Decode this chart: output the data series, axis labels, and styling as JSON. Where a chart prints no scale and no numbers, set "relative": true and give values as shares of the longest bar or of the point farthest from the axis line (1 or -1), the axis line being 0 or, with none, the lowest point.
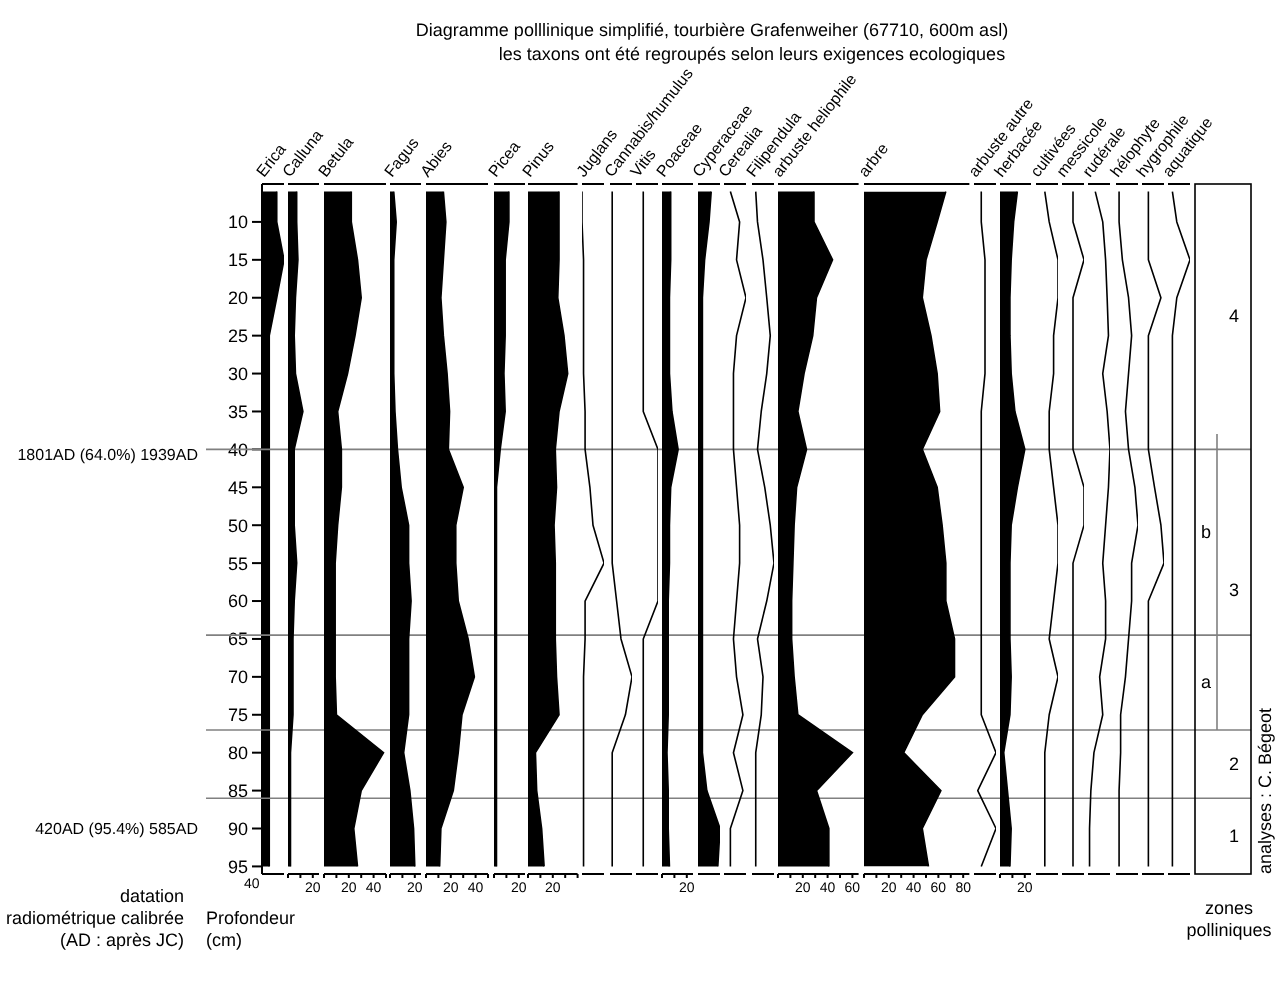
{
  "chart_data": [
    {
      "type": "other",
      "title": "Diagramme polllinique simplifié, tourbière Grafenweiher (67710, 600m asl)",
      "subtitle": "les taxons ont été regroupés selon leurs exigences ecologiques",
      "annotations": [
        "datation\nradiométrique calibrée\n(AD : après JC)",
        "40"
      ]
    },
    {
      "type": "area",
      "orientation": "horizontal",
      "relative": true,
      "title": "Erica",
      "color": "#000000",
      "ylabel": "Profondeur\n(cm)",
      "ylim": [
        96,
        5
      ],
      "yticks": [
        10,
        15,
        20,
        25,
        30,
        35,
        40,
        45,
        50,
        55,
        60,
        65,
        70,
        75,
        80,
        85,
        90,
        95
      ],
      "tick_labels": "y",
      "annotations": [
        "1801AD (64.0%) 1939AD",
        "420AD (95.4%) 585AD"
      ],
      "ref_lines": [
        {
          "axis": "y",
          "value": 40,
          "color": "#808080"
        },
        {
          "axis": "y",
          "value": 64.5,
          "color": "#808080"
        },
        {
          "axis": "y",
          "value": 77,
          "color": "#808080"
        },
        {
          "axis": "y",
          "value": 86,
          "color": "#808080"
        }
      ],
      "x": [
        6,
        10,
        15,
        20,
        25,
        30,
        35,
        40,
        45,
        50,
        55,
        60,
        65,
        70,
        75,
        80,
        85,
        90,
        95
      ],
      "values": [
        0.67,
        0.67,
        1,
        0.67,
        0.33,
        0.33,
        0.33,
        0.33,
        0.33,
        0.33,
        0.33,
        0.33,
        0.33,
        0.33,
        0.33,
        0.33,
        0.33,
        0.33,
        0.33
      ]
    },
    {
      "type": "area",
      "orientation": "horizontal",
      "title": "Calluna",
      "color": "#000000",
      "ylim": [
        96,
        5
      ],
      "tick_labels": "x",
      "xlim": [
        0,
        25
      ],
      "xticks": [
        {
          "value": 0,
          "label": null
        },
        {
          "value": 10,
          "label": null
        },
        20
      ],
      "x": [
        6,
        10,
        15,
        20,
        25,
        30,
        35,
        40,
        45,
        50,
        55,
        60,
        65,
        70,
        75,
        80,
        85,
        90,
        95
      ],
      "values": [
        7,
        7,
        8,
        6,
        5,
        6,
        12,
        5,
        5,
        5,
        7,
        5,
        4,
        4,
        4,
        2,
        2,
        2,
        2
      ]
    },
    {
      "type": "area",
      "orientation": "horizontal",
      "title": "Betula",
      "color": "#000000",
      "ylim": [
        96,
        5
      ],
      "tick_labels": "x",
      "xlim": [
        0,
        50
      ],
      "xticks": [
        {
          "value": 0,
          "label": null
        },
        {
          "value": 10,
          "label": null
        },
        20,
        {
          "value": 30,
          "label": null
        },
        40,
        {
          "value": 50,
          "label": null
        }
      ],
      "x": [
        6,
        10,
        15,
        20,
        25,
        30,
        35,
        40,
        45,
        50,
        55,
        60,
        65,
        70,
        75,
        80,
        85,
        90,
        95
      ],
      "values": [
        22,
        22,
        27,
        30,
        25,
        19,
        11,
        14,
        14,
        11,
        9,
        9,
        9,
        9,
        10,
        48,
        30,
        24,
        27
      ]
    },
    {
      "type": "area",
      "orientation": "horizontal",
      "title": "Fagus",
      "color": "#000000",
      "ylim": [
        96,
        5
      ],
      "tick_labels": "x",
      "xlim": [
        0,
        25
      ],
      "xticks": [
        {
          "value": 0,
          "label": null
        },
        {
          "value": 10,
          "label": null
        },
        20
      ],
      "x": [
        6,
        10,
        15,
        20,
        25,
        30,
        35,
        40,
        45,
        50,
        55,
        60,
        65,
        70,
        75,
        80,
        85,
        90,
        95
      ],
      "values": [
        3,
        5,
        3,
        3,
        3,
        3,
        4,
        6,
        9,
        15,
        15,
        17,
        15,
        15,
        15,
        11,
        16,
        19,
        20
      ]
    },
    {
      "type": "area",
      "orientation": "horizontal",
      "title": "Abies",
      "color": "#000000",
      "ylim": [
        96,
        5
      ],
      "tick_labels": "x",
      "xlim": [
        0,
        50
      ],
      "xticks": [
        {
          "value": 0,
          "label": null
        },
        {
          "value": 10,
          "label": null
        },
        20,
        {
          "value": 30,
          "label": null
        },
        40,
        {
          "value": 50,
          "label": null
        }
      ],
      "x": [
        6,
        10,
        15,
        20,
        25,
        30,
        35,
        40,
        45,
        50,
        55,
        60,
        65,
        70,
        75,
        80,
        85,
        90,
        95
      ],
      "values": [
        14,
        16,
        14,
        12,
        14,
        17,
        19,
        18,
        30,
        24,
        24,
        26,
        34,
        39,
        29,
        26,
        22,
        12,
        11
      ]
    },
    {
      "type": "area",
      "orientation": "horizontal",
      "title": "Picea",
      "color": "#000000",
      "ylim": [
        96,
        5
      ],
      "tick_labels": "x",
      "xlim": [
        0,
        25
      ],
      "xticks": [
        {
          "value": 0,
          "label": null
        },
        {
          "value": 10,
          "label": null
        },
        20
      ],
      "x": [
        6,
        10,
        15,
        20,
        25,
        30,
        35,
        40,
        45,
        50,
        55,
        60,
        65,
        70,
        75,
        80,
        85,
        90,
        95
      ],
      "values": [
        12,
        12,
        9,
        9,
        9,
        8,
        9,
        5,
        2,
        2,
        2,
        2,
        2,
        2,
        2,
        2,
        2,
        2,
        2
      ]
    },
    {
      "type": "area",
      "orientation": "horizontal",
      "title": "Pinus",
      "color": "#000000",
      "ylim": [
        96,
        5
      ],
      "tick_labels": "x",
      "xlim": [
        0,
        40
      ],
      "xticks": [
        {
          "value": 0,
          "label": null
        },
        {
          "value": 10,
          "label": null
        },
        20,
        {
          "value": 30,
          "label": null
        },
        {
          "value": 40,
          "label": null
        }
      ],
      "x": [
        6,
        10,
        15,
        20,
        25,
        30,
        35,
        40,
        45,
        50,
        55,
        60,
        65,
        70,
        75,
        80,
        85,
        90,
        95
      ],
      "values": [
        25,
        25,
        25,
        24,
        29,
        32,
        25,
        22,
        23,
        21,
        22,
        22,
        22,
        23,
        25,
        6,
        7,
        11,
        13
      ]
    },
    {
      "type": "line",
      "orientation": "horizontal",
      "relative": true,
      "title": "Juglans",
      "color": "#000000",
      "ylim": [
        96,
        5
      ],
      "tick_labels": false,
      "x": [
        6,
        10,
        15,
        20,
        25,
        30,
        35,
        40,
        45,
        50,
        55,
        60,
        65,
        70,
        75,
        80,
        85,
        90,
        95
      ],
      "values": [
        0,
        0,
        0.07,
        0.07,
        0.07,
        0.07,
        0.14,
        0.14,
        0.36,
        0.5,
        1,
        0.14,
        0.14,
        0.07,
        0.07,
        0.07,
        0.07,
        0.07,
        0.07
      ]
    },
    {
      "type": "line",
      "orientation": "horizontal",
      "relative": true,
      "title": "Cannabis/humulus",
      "color": "#000000",
      "ylim": [
        96,
        5
      ],
      "tick_labels": false,
      "x": [
        6,
        10,
        15,
        20,
        25,
        30,
        35,
        40,
        45,
        50,
        55,
        60,
        65,
        70,
        75,
        80,
        85,
        90,
        95
      ],
      "values": [
        0.1,
        0.1,
        0.1,
        0.1,
        0.1,
        0.1,
        0.1,
        0.1,
        0.1,
        0.1,
        0.1,
        0.3,
        0.5,
        1,
        0.7,
        0.1,
        0.1,
        0.1,
        0.1
      ]
    },
    {
      "type": "line",
      "orientation": "horizontal",
      "relative": true,
      "title": "Vitis",
      "color": "#000000",
      "ylim": [
        96,
        5
      ],
      "tick_labels": false,
      "x": [
        6,
        10,
        15,
        20,
        25,
        30,
        35,
        40,
        45,
        50,
        55,
        60,
        65,
        70,
        75,
        80,
        85,
        90,
        95
      ],
      "values": [
        0.33,
        0.33,
        0.33,
        0.33,
        0.33,
        0.33,
        0.33,
        1,
        1,
        1,
        1,
        1,
        0.33,
        0.33,
        0.33,
        0.33,
        0.33,
        0.33,
        0.33
      ]
    },
    {
      "type": "area",
      "orientation": "horizontal",
      "title": "Poaceae",
      "color": "#000000",
      "ylim": [
        96,
        5
      ],
      "tick_labels": "x",
      "xlim": [
        0,
        25
      ],
      "xticks": [
        {
          "value": 0,
          "label": null
        },
        {
          "value": 10,
          "label": null
        },
        20
      ],
      "x": [
        6,
        10,
        15,
        20,
        25,
        30,
        35,
        40,
        45,
        50,
        55,
        60,
        65,
        70,
        75,
        80,
        85,
        90,
        95
      ],
      "values": [
        7,
        7,
        7,
        6,
        6,
        6,
        8,
        13,
        7,
        6,
        6,
        5,
        5,
        5,
        5,
        4,
        5,
        5,
        6
      ]
    },
    {
      "type": "area",
      "orientation": "horizontal",
      "relative": true,
      "title": "Cyperaceae",
      "color": "#000000",
      "ylim": [
        96,
        5
      ],
      "tick_labels": false,
      "x": [
        6,
        10,
        15,
        20,
        25,
        30,
        35,
        40,
        45,
        50,
        55,
        60,
        65,
        70,
        75,
        80,
        85,
        90,
        95
      ],
      "values": [
        0.6,
        0.5,
        0.3,
        0.2,
        0.2,
        0.2,
        0.2,
        0.2,
        0.2,
        0.2,
        0.2,
        0.2,
        0.2,
        0.2,
        0.2,
        0.2,
        0.4,
        1,
        0.9
      ]
    },
    {
      "type": "line",
      "orientation": "horizontal",
      "relative": true,
      "title": "Cerealia",
      "color": "#000000",
      "ylim": [
        96,
        5
      ],
      "tick_labels": false,
      "x": [
        6,
        10,
        15,
        20,
        25,
        30,
        35,
        40,
        45,
        50,
        55,
        60,
        65,
        70,
        75,
        80,
        85,
        90,
        95
      ],
      "values": [
        0.29,
        0.71,
        0.57,
        1,
        0.57,
        0.43,
        0.43,
        0.43,
        0.57,
        0.71,
        0.71,
        0.57,
        0.43,
        0.57,
        0.86,
        0.43,
        0.86,
        0.29,
        0.29
      ]
    },
    {
      "type": "line",
      "orientation": "horizontal",
      "relative": true,
      "title": "Filipendula",
      "color": "#000000",
      "ylim": [
        96,
        5
      ],
      "tick_labels": false,
      "x": [
        6,
        10,
        15,
        20,
        25,
        30,
        35,
        40,
        45,
        50,
        55,
        60,
        65,
        70,
        75,
        80,
        85,
        90,
        95
      ],
      "values": [
        0.17,
        0.25,
        0.5,
        0.67,
        0.83,
        0.67,
        0.42,
        0.25,
        0.58,
        0.83,
        1,
        0.67,
        0.25,
        0.5,
        0.42,
        0.17,
        0.17,
        0.17,
        0.17
      ]
    },
    {
      "type": "area",
      "orientation": "horizontal",
      "title": "arbuste heliophile",
      "color": "#000000",
      "ylim": [
        96,
        5
      ],
      "tick_labels": "x",
      "xlim": [
        0,
        65
      ],
      "xticks": [
        {
          "value": 0,
          "label": null
        },
        {
          "value": 10,
          "label": null
        },
        20,
        {
          "value": 30,
          "label": null
        },
        40,
        {
          "value": 50,
          "label": null
        },
        60
      ],
      "x": [
        6,
        10,
        15,
        20,
        25,
        30,
        35,
        40,
        45,
        50,
        55,
        60,
        65,
        70,
        75,
        80,
        85,
        90,
        95
      ],
      "values": [
        29,
        29,
        44,
        31,
        28,
        21,
        16,
        23,
        15,
        13,
        12,
        11,
        11,
        13,
        16,
        60,
        31,
        41,
        41
      ]
    },
    {
      "type": "area",
      "orientation": "horizontal",
      "title": "arbre",
      "color": "#000000",
      "ylim": [
        96,
        5
      ],
      "tick_labels": "x",
      "xlim": [
        0,
        85
      ],
      "xticks": [
        {
          "value": 0,
          "label": null
        },
        {
          "value": 10,
          "label": null
        },
        20,
        {
          "value": 30,
          "label": null
        },
        40,
        {
          "value": 50,
          "label": null
        },
        60,
        {
          "value": 70,
          "label": null
        },
        80
      ],
      "x": [
        6,
        10,
        15,
        20,
        25,
        30,
        35,
        40,
        45,
        50,
        55,
        60,
        65,
        70,
        75,
        80,
        85,
        90,
        95
      ],
      "values": [
        66,
        59,
        50,
        47,
        54,
        59,
        61,
        47,
        59,
        63,
        66,
        66,
        73,
        73,
        47,
        32,
        62,
        47,
        52
      ]
    },
    {
      "type": "line",
      "orientation": "horizontal",
      "relative": true,
      "title": "arbuste autre",
      "color": "#000000",
      "ylim": [
        96,
        5
      ],
      "tick_labels": false,
      "x": [
        6,
        10,
        15,
        20,
        25,
        30,
        35,
        40,
        45,
        50,
        55,
        60,
        65,
        70,
        75,
        80,
        85,
        90,
        95
      ],
      "values": [
        0.33,
        0.33,
        0.5,
        0.5,
        0.5,
        0.5,
        0.33,
        0.33,
        0.33,
        0.33,
        0.33,
        0.33,
        0.33,
        0.33,
        0.33,
        1,
        0.17,
        1,
        0.33
      ]
    },
    {
      "type": "area",
      "orientation": "horizontal",
      "title": "herbacée",
      "color": "#000000",
      "ylim": [
        96,
        5
      ],
      "tick_labels": "x",
      "xlim": [
        0,
        25
      ],
      "xticks": [
        {
          "value": 0,
          "label": null
        },
        {
          "value": 10,
          "label": null
        },
        20
      ],
      "x": [
        6,
        10,
        15,
        20,
        25,
        30,
        35,
        40,
        45,
        50,
        55,
        60,
        65,
        70,
        75,
        80,
        85,
        90,
        95
      ],
      "values": [
        14,
        11,
        9,
        8,
        8,
        9,
        12,
        20,
        14,
        9,
        8,
        8,
        8,
        9,
        8,
        3,
        6,
        9,
        8
      ]
    },
    {
      "type": "line",
      "orientation": "horizontal",
      "relative": true,
      "title": "cultivées",
      "color": "#000000",
      "ylim": [
        96,
        5
      ],
      "tick_labels": false,
      "x": [
        6,
        10,
        15,
        20,
        25,
        30,
        35,
        40,
        45,
        50,
        55,
        60,
        65,
        70,
        75,
        80,
        85,
        90,
        95
      ],
      "values": [
        0.4,
        0.6,
        1,
        1,
        0.8,
        0.8,
        0.6,
        0.6,
        0.8,
        1,
        1,
        0.8,
        0.6,
        1,
        0.6,
        0.4,
        0.4,
        0.4,
        0.4
      ]
    },
    {
      "type": "line",
      "orientation": "horizontal",
      "relative": true,
      "title": "messicole",
      "color": "#000000",
      "ylim": [
        96,
        5
      ],
      "tick_labels": false,
      "x": [
        6,
        10,
        15,
        20,
        25,
        30,
        35,
        40,
        45,
        50,
        55,
        60,
        65,
        70,
        75,
        80,
        85,
        90,
        95
      ],
      "values": [
        0.5,
        0.5,
        1,
        0.5,
        0.5,
        0.5,
        0.5,
        0.5,
        1,
        1,
        0.5,
        0.5,
        0.5,
        0.5,
        0.5,
        0.5,
        0.5,
        0.5,
        0.5
      ]
    },
    {
      "type": "line",
      "orientation": "horizontal",
      "relative": true,
      "title": "rudérale",
      "color": "#000000",
      "ylim": [
        96,
        5
      ],
      "tick_labels": false,
      "x": [
        6,
        10,
        15,
        20,
        25,
        30,
        35,
        40,
        45,
        50,
        55,
        60,
        65,
        70,
        75,
        80,
        85,
        90,
        95
      ],
      "values": [
        0.33,
        0.67,
        0.8,
        0.87,
        0.93,
        0.67,
        0.87,
        1,
        0.93,
        0.8,
        0.67,
        0.8,
        0.8,
        0.53,
        0.67,
        0.27,
        0.13,
        0.07,
        0.07
      ]
    },
    {
      "type": "line",
      "orientation": "horizontal",
      "relative": true,
      "title": "hélophyte",
      "color": "#000000",
      "ylim": [
        96,
        5
      ],
      "tick_labels": false,
      "x": [
        6,
        10,
        15,
        20,
        25,
        30,
        35,
        40,
        45,
        50,
        55,
        60,
        65,
        70,
        75,
        80,
        85,
        90,
        95
      ],
      "values": [
        0.14,
        0.14,
        0.29,
        0.57,
        0.71,
        0.57,
        0.43,
        0.57,
        0.86,
        1,
        0.71,
        0.71,
        0.57,
        0.43,
        0.21,
        0.21,
        0.14,
        0.14,
        0.14
      ]
    },
    {
      "type": "line",
      "orientation": "horizontal",
      "relative": true,
      "title": "hygrophile",
      "color": "#000000",
      "ylim": [
        96,
        5
      ],
      "tick_labels": false,
      "x": [
        6,
        10,
        15,
        20,
        25,
        30,
        35,
        40,
        45,
        50,
        55,
        60,
        65,
        70,
        75,
        80,
        85,
        90,
        95
      ],
      "values": [
        0.29,
        0.29,
        0.29,
        0.86,
        0.29,
        0.29,
        0.29,
        0.29,
        0.57,
        0.86,
        1,
        0.29,
        0.29,
        0.29,
        0.29,
        0.29,
        0.29,
        0.29,
        0.29
      ]
    },
    {
      "type": "line",
      "orientation": "horizontal",
      "relative": true,
      "title": "aquatique",
      "color": "#000000",
      "ylim": [
        96,
        5
      ],
      "tick_labels": false,
      "x": [
        6,
        10,
        15,
        20,
        25,
        30,
        35,
        40,
        45,
        50,
        55,
        60,
        65,
        70,
        75,
        80,
        85,
        90,
        95
      ],
      "values": [
        0.2,
        0.4,
        1,
        0.4,
        0.2,
        0.2,
        0.2,
        0.2,
        0.2,
        0.2,
        0.2,
        0.2,
        0.2,
        0.2,
        0.2,
        0.2,
        0.2,
        0.2,
        0.2
      ]
    },
    {
      "type": "other",
      "annotations": [
        "4",
        "3",
        "b",
        "a",
        "2",
        "1",
        "zones\npolliniques",
        "analyses : C. Bégeot"
      ]
    }
  ]
}
